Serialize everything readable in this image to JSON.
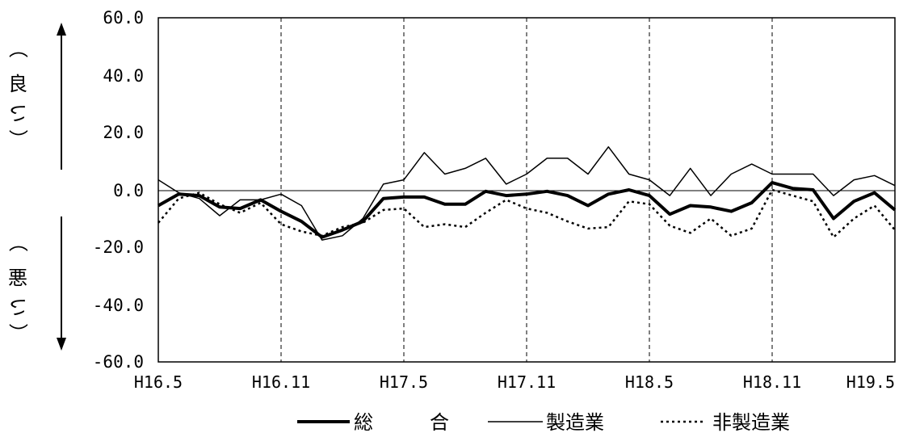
{
  "chart_data": {
    "type": "line",
    "x_ticks": [
      "H16.5",
      "H16.11",
      "H17.5",
      "H17.11",
      "H18.5",
      "H18.11",
      "H19.5"
    ],
    "y_ticks": [
      "60.0",
      "40.0",
      "20.0",
      "0.0",
      "-20.0",
      "-40.0",
      "-60.0"
    ],
    "ylim": [
      -60,
      60
    ],
    "grid": "vertical dashed lines at x ticks; solid zero line",
    "side_labels": {
      "upper": [
        "（",
        "良",
        "い",
        "）"
      ],
      "lower": [
        "（",
        "悪",
        "い",
        "）"
      ]
    },
    "legend": {
      "position": "bottom",
      "label_0_a": "総",
      "label_0_b": "合"
    },
    "series": [
      {
        "name": "総合",
        "style": "thick-solid",
        "values": [
          -5.5,
          -1.5,
          -2,
          -6,
          -6.5,
          -3.5,
          -7.5,
          -11,
          -16.5,
          -14,
          -11,
          -3,
          -2.5,
          -2.5,
          -5,
          -5,
          -0.5,
          -2,
          -1.5,
          -0.5,
          -2,
          -5.5,
          -1.5,
          0,
          -2,
          -8.5,
          -5.5,
          -6,
          -7.5,
          -4.5,
          2.5,
          0.5,
          0,
          -10,
          -4,
          -1,
          -7
        ]
      },
      {
        "name": "製造業",
        "style": "thin-solid",
        "values": [
          3.5,
          -1,
          -3,
          -9,
          -3.5,
          -3.5,
          -1.5,
          -5.5,
          -17.5,
          -16,
          -10,
          2,
          3.5,
          13,
          5.5,
          7.5,
          11,
          2,
          5.5,
          11,
          11,
          5.5,
          15,
          5.5,
          3.5,
          -2,
          7.5,
          -2,
          5.5,
          9,
          5.5,
          5.5,
          5.5,
          -2,
          3.5,
          5,
          1.5
        ]
      },
      {
        "name": "非製造業",
        "style": "dotted",
        "values": [
          -11.5,
          -3,
          -1,
          -5,
          -8,
          -4.5,
          -12,
          -14.5,
          -16,
          -13,
          -11.5,
          -7,
          -6.5,
          -13,
          -12,
          -13,
          -8,
          -3.5,
          -6.5,
          -8,
          -11,
          -13.5,
          -13,
          -4,
          -5,
          -12.5,
          -15,
          -10,
          -16,
          -13.5,
          0,
          -2,
          -4,
          -16.5,
          -10,
          -5.5,
          -14
        ]
      }
    ]
  }
}
